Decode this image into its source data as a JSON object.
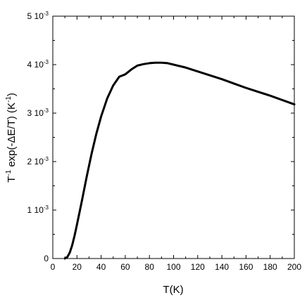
{
  "chart_data": {
    "type": "line",
    "title": "",
    "xlabel": "T(K)",
    "ylabel_parts": [
      "T",
      "-1",
      " exp(-ΔE/T) (K",
      "-1",
      ")"
    ],
    "xlim": [
      0,
      200
    ],
    "ylim": [
      0,
      0.005
    ],
    "grid": false,
    "x_ticks": [
      0,
      20,
      40,
      60,
      80,
      100,
      120,
      140,
      160,
      180,
      200
    ],
    "x_tick_labels": [
      "0",
      "20",
      "40",
      "60",
      "80",
      "100",
      "120",
      "140",
      "160",
      "180",
      "200"
    ],
    "y_ticks": [
      0,
      0.001,
      0.002,
      0.003,
      0.004,
      0.005
    ],
    "y_tick_labels": [
      {
        "mantissa": "0",
        "exp": ""
      },
      {
        "mantissa": "1 10",
        "exp": "-3"
      },
      {
        "mantissa": "2 10",
        "exp": "-3"
      },
      {
        "mantissa": "3 10",
        "exp": "-3"
      },
      {
        "mantissa": "4 10",
        "exp": "-3"
      },
      {
        "mantissa": "5 10",
        "exp": "-3"
      }
    ],
    "series": [
      {
        "color": "#000000",
        "x": [
          10,
          12,
          14,
          16,
          18,
          20,
          24,
          28,
          32,
          36,
          40,
          45,
          50,
          55,
          60,
          65,
          70,
          75,
          80,
          85,
          90,
          95,
          100,
          110,
          120,
          130,
          140,
          150,
          160,
          170,
          180,
          190,
          200
        ],
        "y": [
          0.0,
          3e-05,
          0.00012,
          0.00027,
          0.00047,
          0.0007,
          0.00118,
          0.00168,
          0.00215,
          0.00257,
          0.00293,
          0.0033,
          0.00357,
          0.00375,
          0.0038,
          0.0039,
          0.00398,
          0.00401,
          0.00403,
          0.00404,
          0.00404,
          0.00403,
          0.004,
          0.00394,
          0.00386,
          0.00378,
          0.0037,
          0.00361,
          0.00352,
          0.00344,
          0.00336,
          0.00327,
          0.00318
        ]
      }
    ]
  }
}
